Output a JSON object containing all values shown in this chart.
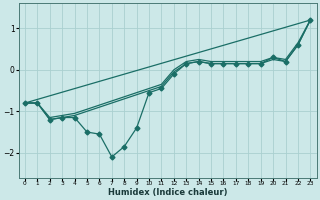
{
  "xlabel": "Humidex (Indice chaleur)",
  "bg_color": "#cce8e8",
  "grid_color": "#aad0d0",
  "line_color": "#1a6e66",
  "xlim": [
    -0.5,
    23.5
  ],
  "ylim": [
    -2.6,
    1.6
  ],
  "yticks": [
    -2,
    -1,
    0,
    1
  ],
  "xticks": [
    0,
    1,
    2,
    3,
    4,
    5,
    6,
    7,
    8,
    9,
    10,
    11,
    12,
    13,
    14,
    15,
    16,
    17,
    18,
    19,
    20,
    21,
    22,
    23
  ],
  "lines": [
    {
      "x": [
        0,
        1,
        2,
        3,
        4,
        5,
        6,
        7,
        8,
        9,
        10,
        11,
        12,
        13,
        14,
        15,
        16,
        17,
        18,
        19,
        20,
        21,
        22,
        23
      ],
      "y": [
        -0.8,
        -0.8,
        -1.2,
        -1.15,
        -1.15,
        -1.5,
        -1.55,
        -2.1,
        -1.85,
        -1.4,
        -0.55,
        -0.45,
        -0.1,
        0.15,
        0.2,
        0.15,
        0.15,
        0.15,
        0.15,
        0.15,
        0.3,
        0.2,
        0.6,
        1.2
      ],
      "marker": true
    },
    {
      "x": [
        0,
        1,
        2,
        3,
        4,
        10,
        11,
        12,
        13,
        14,
        15,
        16,
        17,
        18,
        19,
        20,
        21,
        22,
        23
      ],
      "y": [
        -0.8,
        -0.8,
        -1.2,
        -1.15,
        -1.1,
        -0.5,
        -0.4,
        -0.05,
        0.15,
        0.2,
        0.15,
        0.15,
        0.15,
        0.15,
        0.15,
        0.25,
        0.2,
        0.6,
        1.2
      ],
      "marker": false
    },
    {
      "x": [
        0,
        1,
        2,
        3,
        4,
        10,
        11,
        12,
        13,
        14,
        15,
        16,
        17,
        18,
        19,
        20,
        21,
        22,
        23
      ],
      "y": [
        -0.8,
        -0.8,
        -1.15,
        -1.1,
        -1.05,
        -0.45,
        -0.35,
        0.0,
        0.2,
        0.25,
        0.2,
        0.2,
        0.2,
        0.2,
        0.2,
        0.3,
        0.25,
        0.65,
        1.2
      ],
      "marker": false
    },
    {
      "x": [
        0,
        23
      ],
      "y": [
        -0.8,
        1.2
      ],
      "marker": false
    }
  ],
  "markersize": 2.5,
  "linewidth": 0.9
}
